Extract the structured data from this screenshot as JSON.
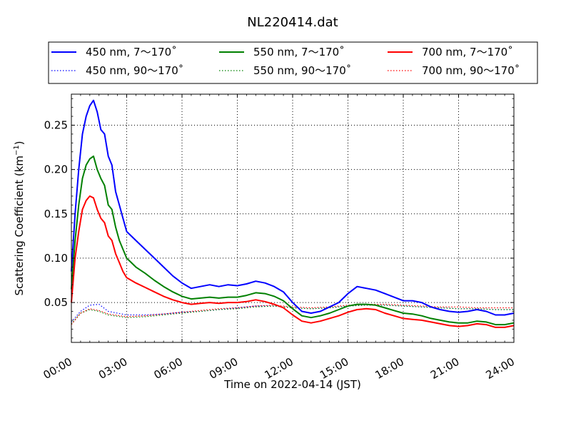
{
  "chart_data": {
    "type": "line",
    "title": "NL220414.dat",
    "xlabel": "Time on 2022-04-14 (JST)",
    "ylabel": "Scattering Coefficient (km",
    "ylabel_sup": "−1",
    "ylabel_close": ")",
    "xlim": [
      0,
      24
    ],
    "ylim": [
      0.005,
      0.285
    ],
    "x_ticks": [
      0,
      3,
      6,
      9,
      12,
      15,
      18,
      21,
      24
    ],
    "x_tick_labels": [
      "00:00",
      "03:00",
      "06:00",
      "09:00",
      "12:00",
      "15:00",
      "18:00",
      "21:00",
      "24:00"
    ],
    "y_ticks": [
      0.05,
      0.1,
      0.15,
      0.2,
      0.25
    ],
    "y_tick_labels": [
      "0.05",
      "0.10",
      "0.15",
      "0.20",
      "0.25"
    ],
    "grid": true,
    "legend_position": "top, above plot",
    "series": [
      {
        "name": "450 nm, 7～170˚",
        "color": "#0000ff",
        "style": "solid",
        "x": [
          0,
          0.2,
          0.4,
          0.6,
          0.8,
          1.0,
          1.2,
          1.4,
          1.6,
          1.8,
          2.0,
          2.2,
          2.4,
          2.6,
          2.8,
          3.0,
          3.5,
          4.0,
          4.5,
          5.0,
          5.5,
          6.0,
          6.5,
          7.0,
          7.5,
          8.0,
          8.5,
          9.0,
          9.5,
          10.0,
          10.5,
          11.0,
          11.5,
          12.0,
          12.5,
          13.0,
          13.5,
          14.0,
          14.5,
          15.0,
          15.5,
          16.0,
          16.5,
          17.0,
          17.5,
          18.0,
          18.5,
          19.0,
          19.5,
          20.0,
          20.5,
          21.0,
          21.5,
          22.0,
          22.5,
          23.0,
          23.5,
          24.0
        ],
        "values": [
          0.085,
          0.15,
          0.2,
          0.24,
          0.26,
          0.272,
          0.278,
          0.265,
          0.245,
          0.24,
          0.215,
          0.205,
          0.175,
          0.16,
          0.145,
          0.13,
          0.12,
          0.11,
          0.1,
          0.09,
          0.08,
          0.072,
          0.066,
          0.068,
          0.07,
          0.068,
          0.07,
          0.069,
          0.071,
          0.074,
          0.072,
          0.068,
          0.062,
          0.05,
          0.04,
          0.038,
          0.04,
          0.045,
          0.05,
          0.06,
          0.068,
          0.066,
          0.064,
          0.06,
          0.056,
          0.052,
          0.052,
          0.05,
          0.045,
          0.042,
          0.04,
          0.039,
          0.04,
          0.042,
          0.04,
          0.036,
          0.036,
          0.038
        ]
      },
      {
        "name": "550 nm, 7～170˚",
        "color": "#008000",
        "style": "solid",
        "x": [
          0,
          0.2,
          0.4,
          0.6,
          0.8,
          1.0,
          1.2,
          1.4,
          1.6,
          1.8,
          2.0,
          2.2,
          2.4,
          2.6,
          2.8,
          3.0,
          3.5,
          4.0,
          4.5,
          5.0,
          5.5,
          6.0,
          6.5,
          7.0,
          7.5,
          8.0,
          8.5,
          9.0,
          9.5,
          10.0,
          10.5,
          11.0,
          11.5,
          12.0,
          12.5,
          13.0,
          13.5,
          14.0,
          14.5,
          15.0,
          15.5,
          16.0,
          16.5,
          17.0,
          17.5,
          18.0,
          18.5,
          19.0,
          19.5,
          20.0,
          20.5,
          21.0,
          21.5,
          22.0,
          22.5,
          23.0,
          23.5,
          24.0
        ],
        "values": [
          0.065,
          0.12,
          0.16,
          0.19,
          0.205,
          0.212,
          0.215,
          0.2,
          0.19,
          0.182,
          0.16,
          0.155,
          0.135,
          0.12,
          0.11,
          0.1,
          0.09,
          0.083,
          0.075,
          0.068,
          0.062,
          0.057,
          0.054,
          0.055,
          0.056,
          0.055,
          0.056,
          0.056,
          0.058,
          0.061,
          0.06,
          0.057,
          0.052,
          0.043,
          0.035,
          0.033,
          0.035,
          0.038,
          0.042,
          0.046,
          0.048,
          0.048,
          0.047,
          0.044,
          0.041,
          0.038,
          0.037,
          0.035,
          0.032,
          0.03,
          0.028,
          0.027,
          0.027,
          0.029,
          0.028,
          0.025,
          0.025,
          0.027
        ]
      },
      {
        "name": "700 nm, 7～170˚",
        "color": "#ff0000",
        "style": "solid",
        "x": [
          0,
          0.2,
          0.4,
          0.6,
          0.8,
          1.0,
          1.2,
          1.4,
          1.6,
          1.8,
          2.0,
          2.2,
          2.4,
          2.6,
          2.8,
          3.0,
          3.5,
          4.0,
          4.5,
          5.0,
          5.5,
          6.0,
          6.5,
          7.0,
          7.5,
          8.0,
          8.5,
          9.0,
          9.5,
          10.0,
          10.5,
          11.0,
          11.5,
          12.0,
          12.5,
          13.0,
          13.5,
          14.0,
          14.5,
          15.0,
          15.5,
          16.0,
          16.5,
          17.0,
          17.5,
          18.0,
          18.5,
          19.0,
          19.5,
          20.0,
          20.5,
          21.0,
          21.5,
          22.0,
          22.5,
          23.0,
          23.5,
          24.0
        ],
        "values": [
          0.05,
          0.1,
          0.13,
          0.155,
          0.165,
          0.17,
          0.168,
          0.155,
          0.145,
          0.14,
          0.125,
          0.12,
          0.105,
          0.095,
          0.085,
          0.078,
          0.072,
          0.067,
          0.062,
          0.057,
          0.053,
          0.05,
          0.048,
          0.049,
          0.05,
          0.049,
          0.05,
          0.05,
          0.051,
          0.053,
          0.051,
          0.048,
          0.044,
          0.036,
          0.029,
          0.027,
          0.029,
          0.032,
          0.035,
          0.039,
          0.042,
          0.043,
          0.042,
          0.038,
          0.035,
          0.032,
          0.031,
          0.03,
          0.028,
          0.026,
          0.024,
          0.023,
          0.024,
          0.026,
          0.025,
          0.022,
          0.022,
          0.024
        ]
      },
      {
        "name": "450 nm, 90～170˚",
        "color": "#0000ff",
        "style": "dotted",
        "x": [
          0,
          0.5,
          1.0,
          1.5,
          2.0,
          3.0,
          4.0,
          5.0,
          6.0,
          7.0,
          8.0,
          9.0,
          10.0,
          11.0,
          12.0,
          13.0,
          14.0,
          15.0,
          16.0,
          17.0,
          18.0,
          19.0,
          20.0,
          21.0,
          22.0,
          23.0,
          24.0
        ],
        "values": [
          0.028,
          0.04,
          0.047,
          0.048,
          0.04,
          0.036,
          0.036,
          0.037,
          0.039,
          0.04,
          0.042,
          0.044,
          0.046,
          0.046,
          0.044,
          0.043,
          0.044,
          0.046,
          0.047,
          0.047,
          0.046,
          0.045,
          0.044,
          0.043,
          0.043,
          0.042,
          0.042
        ]
      },
      {
        "name": "550 nm, 90～170˚",
        "color": "#008000",
        "style": "dotted",
        "x": [
          0,
          0.5,
          1.0,
          1.5,
          2.0,
          3.0,
          4.0,
          5.0,
          6.0,
          7.0,
          8.0,
          9.0,
          10.0,
          11.0,
          12.0,
          13.0,
          14.0,
          15.0,
          16.0,
          17.0,
          18.0,
          19.0,
          20.0,
          21.0,
          22.0,
          23.0,
          24.0
        ],
        "values": [
          0.026,
          0.038,
          0.042,
          0.04,
          0.036,
          0.033,
          0.034,
          0.036,
          0.038,
          0.04,
          0.042,
          0.043,
          0.045,
          0.046,
          0.044,
          0.043,
          0.044,
          0.046,
          0.047,
          0.047,
          0.046,
          0.045,
          0.044,
          0.043,
          0.043,
          0.042,
          0.042
        ]
      },
      {
        "name": "700 nm, 90～170˚",
        "color": "#ff0000",
        "style": "dotted",
        "x": [
          0,
          0.5,
          1.0,
          1.5,
          2.0,
          3.0,
          4.0,
          5.0,
          6.0,
          7.0,
          8.0,
          9.0,
          10.0,
          11.0,
          12.0,
          13.0,
          14.0,
          15.0,
          16.0,
          17.0,
          18.0,
          19.0,
          20.0,
          21.0,
          22.0,
          23.0,
          24.0
        ],
        "values": [
          0.025,
          0.038,
          0.043,
          0.041,
          0.037,
          0.034,
          0.035,
          0.037,
          0.039,
          0.041,
          0.043,
          0.044,
          0.046,
          0.047,
          0.045,
          0.044,
          0.045,
          0.047,
          0.048,
          0.048,
          0.047,
          0.046,
          0.045,
          0.045,
          0.044,
          0.044,
          0.044
        ]
      }
    ]
  }
}
